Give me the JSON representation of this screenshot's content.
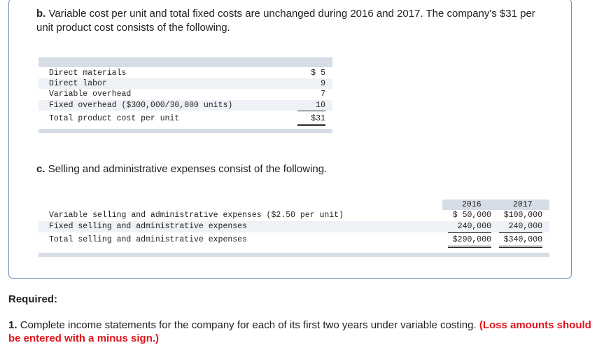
{
  "part_b": {
    "label": "b.",
    "text": "Variable cost per unit and total fixed costs are unchanged during 2016 and 2017. The company's $31 per unit product cost consists of the following."
  },
  "product_cost_table": {
    "rows": [
      {
        "label": "Direct materials",
        "value": "$ 5"
      },
      {
        "label": "Direct labor",
        "value": "9"
      },
      {
        "label": "Variable overhead",
        "value": "7"
      },
      {
        "label": "Fixed overhead ($300,000/30,000 units)",
        "value": "10"
      }
    ],
    "total": {
      "label": "Total product cost per unit",
      "value": "$31"
    }
  },
  "part_c": {
    "label": "c.",
    "text": "Selling and administrative expenses consist of the following."
  },
  "sga_table": {
    "years": [
      "2016",
      "2017"
    ],
    "rows": [
      {
        "label": "Variable selling and administrative expenses ($2.50 per unit)",
        "v2016": "$ 50,000",
        "v2017": "$100,000"
      },
      {
        "label": "Fixed selling and administrative expenses",
        "v2016": "240,000",
        "v2017": "240,000"
      }
    ],
    "total": {
      "label": "Total selling and administrative expenses",
      "v2016": "$290,000",
      "v2017": "$340,000"
    }
  },
  "required": {
    "heading": "Required:",
    "number": "1.",
    "text": "Complete income statements for the company for each of its first two years under variable costing.",
    "note": "(Loss amounts should be entered with a minus sign.)"
  },
  "colors": {
    "panel_border": "#7a8fbf",
    "table_bar": "#d7dde6",
    "row_shade": "#eef1f5",
    "alert_red": "#e0151d"
  }
}
